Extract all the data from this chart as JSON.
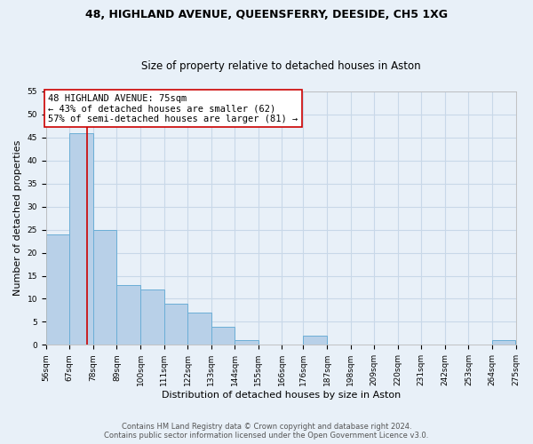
{
  "title": "48, HIGHLAND AVENUE, QUEENSFERRY, DEESIDE, CH5 1XG",
  "subtitle": "Size of property relative to detached houses in Aston",
  "xlabel": "Distribution of detached houses by size in Aston",
  "ylabel": "Number of detached properties",
  "bar_left_edges": [
    56,
    67,
    78,
    89,
    100,
    111,
    122,
    133,
    144,
    155,
    166,
    176,
    187,
    198,
    209,
    220,
    231,
    242,
    253,
    264
  ],
  "bar_heights": [
    24,
    46,
    25,
    13,
    12,
    9,
    7,
    4,
    1,
    0,
    0,
    2,
    0,
    0,
    0,
    0,
    0,
    0,
    0,
    1
  ],
  "bin_width": 11,
  "tick_labels": [
    "56sqm",
    "67sqm",
    "78sqm",
    "89sqm",
    "100sqm",
    "111sqm",
    "122sqm",
    "133sqm",
    "144sqm",
    "155sqm",
    "166sqm",
    "176sqm",
    "187sqm",
    "198sqm",
    "209sqm",
    "220sqm",
    "231sqm",
    "242sqm",
    "253sqm",
    "264sqm",
    "275sqm"
  ],
  "tick_positions": [
    56,
    67,
    78,
    89,
    100,
    111,
    122,
    133,
    144,
    155,
    166,
    176,
    187,
    198,
    209,
    220,
    231,
    242,
    253,
    264,
    275
  ],
  "bar_color": "#b8d0e8",
  "bar_edge_color": "#6baed6",
  "vline_x": 75,
  "vline_color": "#cc0000",
  "xlim": [
    56,
    275
  ],
  "ylim": [
    0,
    55
  ],
  "yticks": [
    0,
    5,
    10,
    15,
    20,
    25,
    30,
    35,
    40,
    45,
    50,
    55
  ],
  "annotation_title": "48 HIGHLAND AVENUE: 75sqm",
  "annotation_line1": "← 43% of detached houses are smaller (62)",
  "annotation_line2": "57% of semi-detached houses are larger (81) →",
  "annotation_box_facecolor": "#ffffff",
  "annotation_box_edgecolor": "#cc0000",
  "grid_color": "#c8d8e8",
  "bg_color": "#e8f0f8",
  "title_fontsize": 9,
  "subtitle_fontsize": 8.5,
  "ylabel_fontsize": 8,
  "xlabel_fontsize": 8,
  "tick_fontsize": 6.5,
  "annotation_fontsize": 7.5,
  "footer1": "Contains HM Land Registry data © Crown copyright and database right 2024.",
  "footer2": "Contains public sector information licensed under the Open Government Licence v3.0.",
  "footer_fontsize": 6
}
